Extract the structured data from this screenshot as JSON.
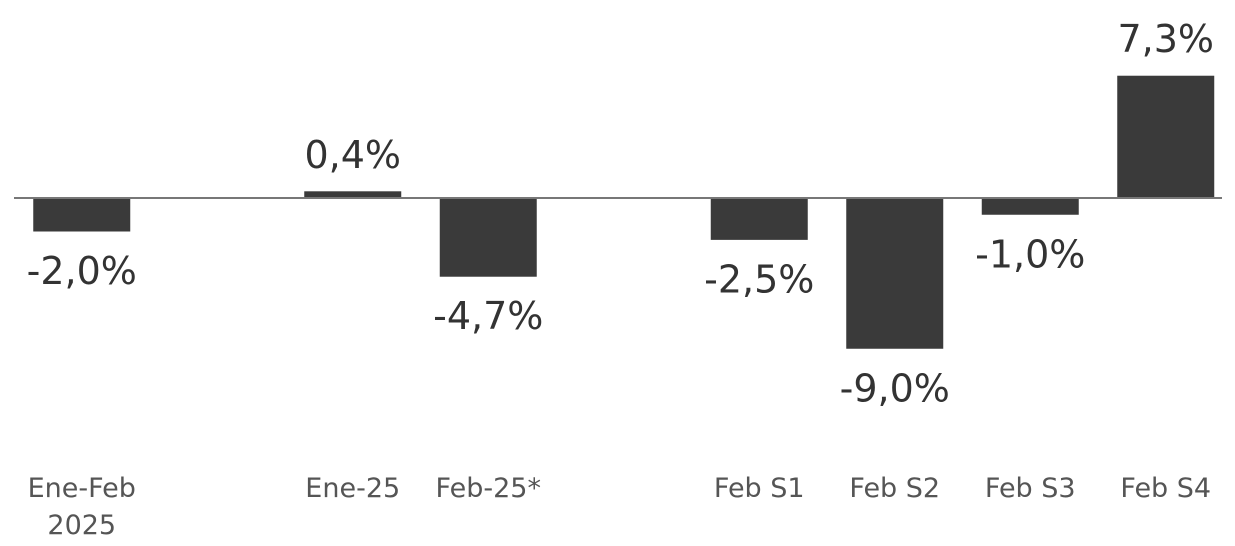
{
  "chart_data": {
    "type": "bar",
    "categories": [
      "Ene-Feb 2025",
      null,
      "Ene-25",
      "Feb-25*",
      null,
      "Feb S1",
      "Feb S2",
      "Feb S3",
      "Feb S4"
    ],
    "values": [
      -2.0,
      null,
      0.4,
      -4.7,
      null,
      -2.5,
      -9.0,
      -1.0,
      7.3
    ],
    "value_labels": [
      "-2,0%",
      null,
      "0,4%",
      "-4,7%",
      null,
      "-2,5%",
      "-9,0%",
      "-1,0%",
      "7,3%"
    ],
    "color": "#3a3a3a",
    "ylim": [
      -10,
      8
    ]
  }
}
